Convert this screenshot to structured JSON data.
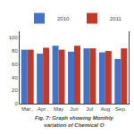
{
  "chart_data": {
    "type": "bar",
    "categories": [
      "Mar.,",
      "Apr.,",
      "May",
      "Jun",
      "Jul",
      "Aug",
      "Sep."
    ],
    "series": [
      {
        "name": "2010",
        "color": "#4472C4",
        "values": [
          82,
          76,
          88,
          79,
          84,
          78,
          68
        ]
      },
      {
        "name": "2011",
        "color": "#C0392B",
        "values": [
          82,
          85,
          82,
          88,
          84,
          80,
          84
        ]
      }
    ],
    "ylim": [
      0,
      110
    ],
    "yticks": [
      0,
      20,
      40,
      60,
      80,
      100
    ],
    "grid": false,
    "legend": "upper center",
    "annotations": [
      "Fig. 7: Graph showing Monthly variation of Chemical O"
    ]
  }
}
